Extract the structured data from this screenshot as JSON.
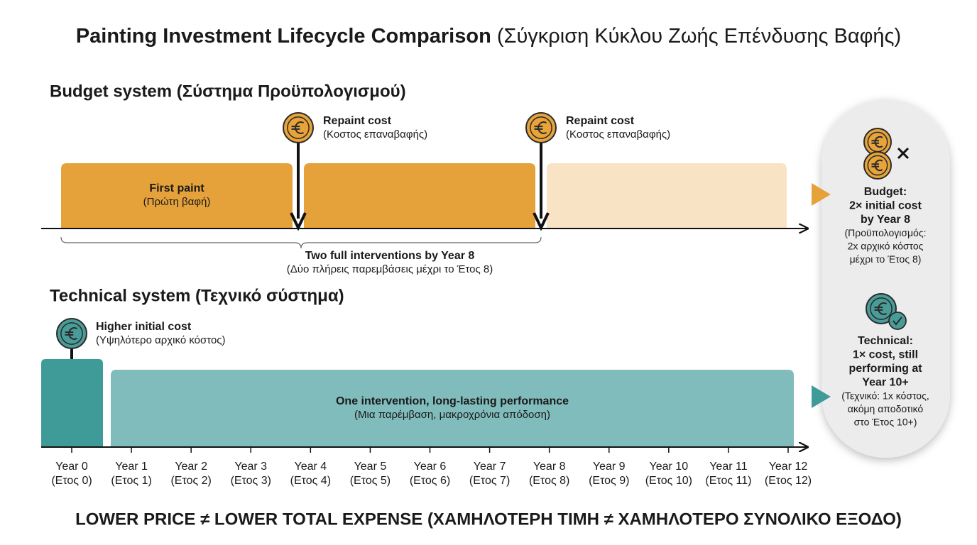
{
  "title": {
    "main": "Painting Investment Lifecycle Comparison",
    "sub": "(Σύγκριση Κύκλου Ζωής Επένδυσης Βαφής)"
  },
  "budget": {
    "heading": "Budget system (Σύστημα Προϋπολογισμού)",
    "first_paint": {
      "label": "First paint",
      "sub": "(Πρώτη βαφή)"
    },
    "markers": [
      {
        "label": "Repaint cost",
        "sub": "(Κοστος επαναβαφής)"
      },
      {
        "label": "Repaint cost",
        "sub": "(Κοστος επαναβαφής)"
      }
    ],
    "brace": {
      "label": "Two full interventions by Year 8",
      "sub": "(Δύο πλήρεις παρεμβάσεις μέχρι το Έτος 8)"
    }
  },
  "technical": {
    "heading": "Technical system (Τεχνικό σύστημα)",
    "marker": {
      "label": "Higher initial cost",
      "sub": "(Υψηλότερο αρχικό κόστος)"
    },
    "bar": {
      "label": "One intervention, long-lasting performance",
      "sub": "(Μια παρέμβαση, μακροχρόνια απόδοση)"
    }
  },
  "years": [
    {
      "label": "Year 0",
      "sub": "(Ετος 0)"
    },
    {
      "label": "Year 1",
      "sub": "(Ετος 1)"
    },
    {
      "label": "Year 2",
      "sub": "(Ετος 2)"
    },
    {
      "label": "Year 3",
      "sub": "(Ετος 3)"
    },
    {
      "label": "Year 4",
      "sub": "(Ετος 4)"
    },
    {
      "label": "Year 5",
      "sub": "(Ετος 5)"
    },
    {
      "label": "Year 6",
      "sub": "(Ετος 6)"
    },
    {
      "label": "Year 7",
      "sub": "(Ετος 7)"
    },
    {
      "label": "Year 8",
      "sub": "(Ετος 8)"
    },
    {
      "label": "Year 9",
      "sub": "(Ετος 9)"
    },
    {
      "label": "Year 10",
      "sub": "(Ετος 10)"
    },
    {
      "label": "Year 11",
      "sub": "(Ετος 11)"
    },
    {
      "label": "Year 12",
      "sub": "(Ετος 12)"
    }
  ],
  "summary": {
    "budget": {
      "bold": [
        "Budget:",
        "2× initial cost",
        "by Year 8"
      ],
      "sub": [
        "(Προϋπολογισμός:",
        "2x αρχικό κόστος",
        "μέχρι το Έτος 8)"
      ]
    },
    "technical": {
      "bold": [
        "Technical:",
        "1× cost, still",
        "performing at",
        "Year 10+"
      ],
      "sub": [
        "(Τεχνικό: 1x κόστος,",
        "ακόμη αποδοτικό",
        "στο Έτος 10+)"
      ]
    }
  },
  "footer": "LOWER PRICE ≠ LOWER TOTAL EXPENSE (ΧΑΜΗΛΟΤΕΡΗ ΤΙΜΗ ≠ ΧΑΜΗΛΟΤΕΡΟ ΣΥΝΟΛΙΚΟ ΕΞΟΔΟ)"
}
